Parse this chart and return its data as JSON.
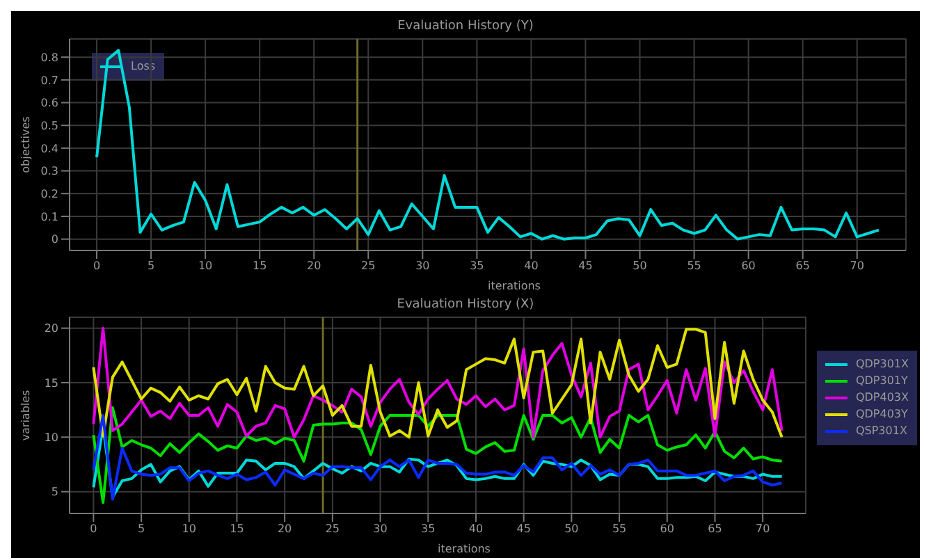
{
  "chart_data": [
    {
      "type": "line",
      "title": "Evaluation History (Y)",
      "xlabel": "iterations",
      "ylabel": "objectives",
      "x": [
        0,
        1,
        2,
        3,
        4,
        5,
        6,
        7,
        8,
        9,
        10,
        11,
        12,
        13,
        14,
        15,
        16,
        17,
        18,
        19,
        20,
        21,
        22,
        23,
        24,
        25,
        26,
        27,
        28,
        29,
        30,
        31,
        32,
        33,
        34,
        35,
        36,
        37,
        38,
        39,
        40,
        41,
        42,
        43,
        44,
        45,
        46,
        47,
        48,
        49,
        50,
        51,
        52,
        53,
        54,
        55,
        56,
        57,
        58,
        59,
        60,
        61,
        62,
        63,
        64,
        65,
        66,
        67,
        68,
        69,
        70,
        71,
        72
      ],
      "xlim": [
        -2.5,
        74.5
      ],
      "xticks": [
        0,
        5,
        10,
        15,
        20,
        25,
        30,
        35,
        40,
        45,
        50,
        55,
        60,
        65,
        70
      ],
      "ylim": [
        -0.05,
        0.88
      ],
      "yticks": [
        0,
        0.1,
        0.2,
        0.3,
        0.4,
        0.5,
        0.6,
        0.7,
        0.8
      ],
      "grid": true,
      "legend": "top left",
      "marker": "none",
      "ref_lines": [
        {
          "axis": "x",
          "value": 24,
          "color": "#6b6b2a"
        }
      ],
      "series": [
        {
          "name": "Loss",
          "color": "#00d8d8",
          "values": [
            0.36,
            0.79,
            0.83,
            0.58,
            0.03,
            0.11,
            0.04,
            0.06,
            0.075,
            0.25,
            0.17,
            0.045,
            0.24,
            0.055,
            0.065,
            0.075,
            0.11,
            0.14,
            0.115,
            0.14,
            0.105,
            0.13,
            0.09,
            0.045,
            0.09,
            0.02,
            0.125,
            0.04,
            0.055,
            0.155,
            0.1,
            0.045,
            0.28,
            0.14,
            0.14,
            0.14,
            0.03,
            0.095,
            0.055,
            0.01,
            0.025,
            0.0,
            0.015,
            0.0,
            0.005,
            0.005,
            0.02,
            0.08,
            0.09,
            0.085,
            0.015,
            0.13,
            0.06,
            0.07,
            0.04,
            0.025,
            0.04,
            0.105,
            0.04,
            0.0,
            0.01,
            0.02,
            0.015,
            0.14,
            0.04,
            0.045,
            0.045,
            0.04,
            0.01,
            0.115,
            0.01,
            0.025,
            0.04
          ]
        }
      ]
    },
    {
      "type": "line",
      "title": "Evaluation History (X)",
      "xlabel": "iterations",
      "ylabel": "variables",
      "x": [
        0,
        1,
        2,
        3,
        4,
        5,
        6,
        7,
        8,
        9,
        10,
        11,
        12,
        13,
        14,
        15,
        16,
        17,
        18,
        19,
        20,
        21,
        22,
        23,
        24,
        25,
        26,
        27,
        28,
        29,
        30,
        31,
        32,
        33,
        34,
        35,
        36,
        37,
        38,
        39,
        40,
        41,
        42,
        43,
        44,
        45,
        46,
        47,
        48,
        49,
        50,
        51,
        52,
        53,
        54,
        55,
        56,
        57,
        58,
        59,
        60,
        61,
        62,
        63,
        64,
        65,
        66,
        67,
        68,
        69,
        70,
        71,
        72
      ],
      "xlim": [
        -2.5,
        74.5
      ],
      "xticks": [
        0,
        5,
        10,
        15,
        20,
        25,
        30,
        35,
        40,
        45,
        50,
        55,
        60,
        65,
        70
      ],
      "ylim": [
        3,
        21
      ],
      "yticks": [
        5,
        10,
        15,
        20
      ],
      "grid": true,
      "legend": "right",
      "marker": "none",
      "ref_lines": [
        {
          "axis": "x",
          "value": 24,
          "color": "#6b6b2a"
        }
      ],
      "series": [
        {
          "name": "QDP301X",
          "color": "#00d8d8",
          "values": [
            5.4,
            11,
            4.5,
            6.0,
            6.2,
            7.0,
            7.5,
            5.9,
            6.9,
            7.3,
            6.1,
            6.9,
            5.5,
            6.7,
            6.7,
            6.7,
            7.9,
            7.8,
            7.0,
            7.6,
            7.6,
            7.3,
            6.2,
            6.9,
            7.6,
            7.1,
            6.7,
            7.3,
            6.9,
            7.6,
            7.3,
            7.3,
            6.8,
            8.0,
            7.9,
            7.3,
            7.6,
            7.9,
            7.4,
            6.2,
            6.1,
            6.2,
            6.4,
            6.2,
            6.2,
            7.5,
            6.5,
            7.8,
            7.6,
            7.5,
            7.3,
            7.9,
            7.4,
            6.1,
            6.6,
            6.5,
            7.5,
            7.5,
            7.3,
            6.2,
            6.2,
            6.3,
            6.3,
            6.4,
            6.0,
            6.8,
            6.6,
            6.4,
            6.4,
            6.2,
            6.6,
            6.4,
            6.4
          ]
        },
        {
          "name": "QDP301Y",
          "color": "#00dd00",
          "values": [
            10.2,
            4.0,
            12.7,
            9.1,
            9.7,
            9.3,
            9.0,
            8.3,
            9.4,
            8.6,
            9.5,
            10.3,
            9.6,
            8.8,
            9.2,
            9.0,
            10.1,
            9.7,
            9.9,
            9.4,
            9.9,
            9.7,
            7.8,
            11.1,
            11.2,
            11.2,
            11.3,
            11.3,
            10.7,
            8.4,
            11.0,
            12.0,
            12.0,
            12.0,
            12.0,
            11.0,
            12.0,
            12.0,
            12.0,
            8.9,
            8.5,
            9.1,
            9.5,
            8.7,
            8.8,
            12.0,
            9.8,
            12.0,
            12.0,
            11.3,
            11.8,
            10.0,
            11.8,
            8.6,
            9.8,
            9.0,
            12.0,
            11.4,
            12.0,
            9.3,
            8.8,
            9.1,
            9.3,
            10.2,
            9.0,
            10.5,
            8.7,
            8.1,
            9.0,
            8.0,
            8.2,
            7.9,
            7.8
          ]
        },
        {
          "name": "QDP403X",
          "color": "#e000e0",
          "values": [
            11.2,
            20,
            10.6,
            11.2,
            12.3,
            13.4,
            11.9,
            12.4,
            11.7,
            13.1,
            12.0,
            12.0,
            12.7,
            11.0,
            13.0,
            12.3,
            10.1,
            11.0,
            11.3,
            12.9,
            12.6,
            10.0,
            11.6,
            13.8,
            13.4,
            12.9,
            12.3,
            14.4,
            13.7,
            11.0,
            13.2,
            14.4,
            15.3,
            13.2,
            12.1,
            13.5,
            14.4,
            15.2,
            13.5,
            13.0,
            13.8,
            12.8,
            13.5,
            12.5,
            12.9,
            18.1,
            10.0,
            16.1,
            17.5,
            18.6,
            15.7,
            13.7,
            16.8,
            10.0,
            11.9,
            12.4,
            16.2,
            16.7,
            12.5,
            13.8,
            15.2,
            12.2,
            16.2,
            13.4,
            16.3,
            10.1,
            16.9,
            15.0,
            16.1,
            14.2,
            12.5,
            16.2,
            10.6
          ]
        },
        {
          "name": "QDP403Y",
          "color": "#e0e000",
          "values": [
            16.4,
            10.1,
            15.5,
            16.9,
            15.2,
            13.5,
            14.5,
            14.1,
            13.3,
            14.6,
            13.4,
            13.8,
            13.5,
            14.9,
            15.3,
            13.9,
            15.4,
            12.4,
            16.5,
            15.0,
            14.5,
            14.4,
            16.5,
            13.8,
            14.7,
            12.0,
            12.9,
            11.0,
            11.0,
            16.6,
            12.3,
            10.1,
            10.6,
            10.0,
            15.0,
            10.1,
            12.5,
            10.9,
            11.5,
            16.2,
            16.7,
            17.2,
            17.1,
            16.8,
            19.0,
            13.6,
            17.8,
            17.9,
            12.2,
            13.5,
            14.8,
            19.0,
            11.3,
            17.8,
            15.3,
            18.9,
            15.7,
            14.2,
            15.3,
            18.4,
            16.4,
            16.7,
            19.9,
            19.9,
            19.6,
            11.7,
            18.7,
            13.1,
            17.9,
            15.3,
            13.4,
            12.3,
            10.0
          ]
        },
        {
          "name": "QSP301X",
          "color": "#0a2cff",
          "values": [
            7,
            12,
            4.3,
            9,
            6.9,
            6.6,
            6.5,
            6.6,
            7.2,
            7.2,
            6.0,
            6.7,
            6.9,
            6.5,
            6.2,
            6.6,
            6.1,
            6.3,
            6.8,
            5.6,
            7.0,
            6.6,
            6.2,
            6.7,
            6.5,
            7.3,
            7.3,
            7.2,
            7.2,
            6.1,
            7.3,
            7.9,
            7.3,
            7.9,
            6.3,
            7.9,
            7.6,
            7.6,
            7.5,
            6.7,
            6.6,
            6.6,
            6.8,
            6.8,
            6.5,
            7.4,
            6.8,
            8.1,
            8.1,
            7.0,
            7.6,
            6.5,
            7.4,
            6.6,
            7.0,
            6.5,
            7.5,
            7.6,
            7.9,
            6.9,
            6.9,
            6.9,
            6.5,
            6.5,
            6.7,
            6.9,
            6.0,
            6.4,
            6.5,
            6.9,
            5.9,
            5.6,
            5.8
          ]
        }
      ]
    }
  ]
}
